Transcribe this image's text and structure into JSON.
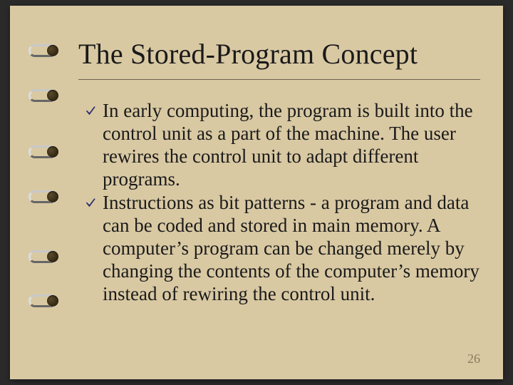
{
  "slide": {
    "title": "The Stored-Program Concept",
    "bullets": [
      "In early computing, the program is built into the control unit as a part of the machine. The user rewires the control unit to adapt different programs.",
      "Instructions as bit patterns - a program and data can be coded and stored in main memory. A computer’s program can be changed merely by changing the contents of the computer’s memory instead of rewiring the control unit."
    ],
    "page_number": "26"
  },
  "style": {
    "background_color": "#d9c9a3",
    "title_fontsize": 40,
    "body_fontsize": 27,
    "text_color": "#1a1a1a",
    "divider_color": "#6b6151",
    "bullet_check_color": "#2b2b6b",
    "page_number_color": "#8a7a5a",
    "ring_positions_pct": [
      10,
      22,
      37,
      49,
      65,
      77
    ]
  }
}
